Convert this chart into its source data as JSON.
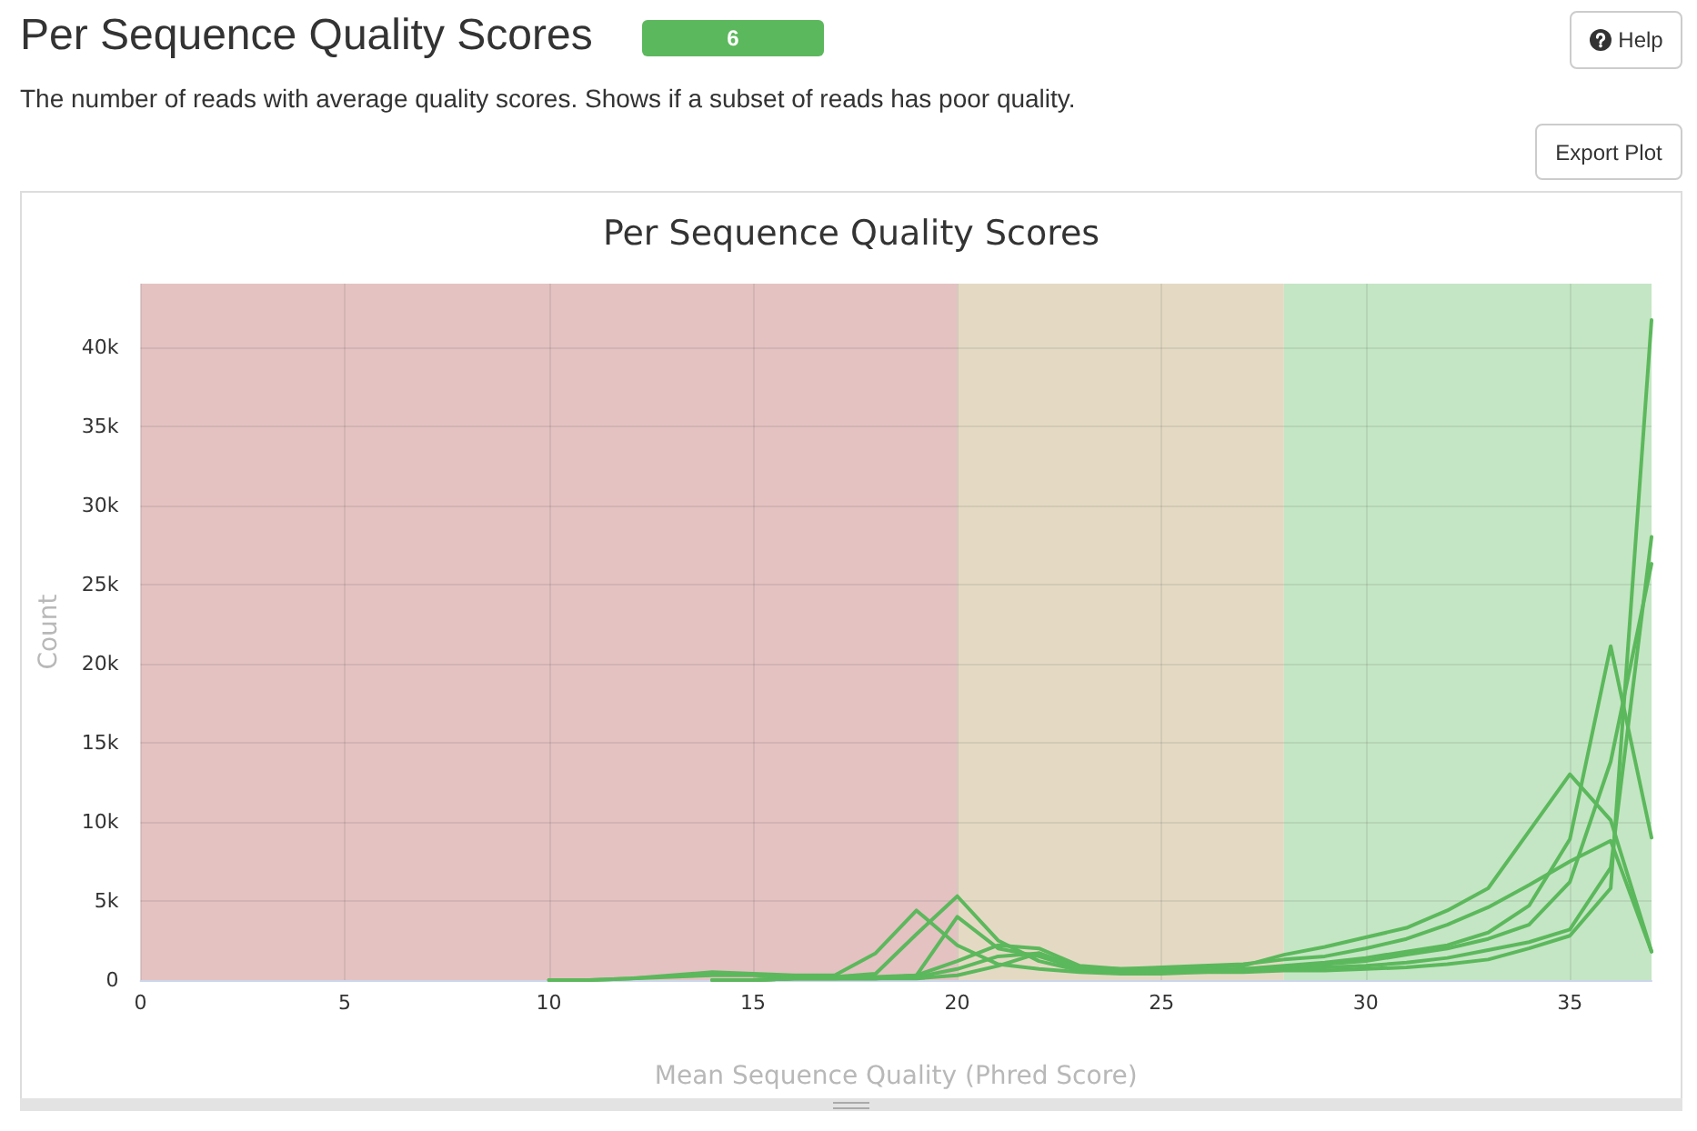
{
  "chart_data": {
    "type": "line",
    "title": "Per Sequence Quality Scores",
    "subtitle": "The number of reads with average quality scores. Shows if a subset of reads has poor quality.",
    "annotations": [
      "Per Sequence Quality Scores",
      "6",
      "Help",
      "Export Plot"
    ],
    "xlabel": "Mean Sequence Quality (Phred Score)",
    "ylabel": "Count",
    "x": [
      10,
      11,
      12,
      13,
      14,
      15,
      16,
      17,
      18,
      19,
      20,
      21,
      22,
      23,
      24,
      25,
      26,
      27,
      28,
      29,
      30,
      31,
      32,
      33,
      34,
      35,
      36,
      37
    ],
    "series": [
      {
        "color": "#5cb85c",
        "values": [
          0,
          0,
          100,
          300,
          500,
          400,
          300,
          300,
          1700,
          4400,
          2200,
          1000,
          700,
          500,
          400,
          400,
          500,
          500,
          600,
          600,
          700,
          800,
          1000,
          1300,
          2000,
          2800,
          5800,
          41700
        ]
      },
      {
        "color": "#5cb85c",
        "values": [
          0,
          0,
          100,
          200,
          300,
          300,
          200,
          200,
          400,
          2900,
          5300,
          2500,
          1200,
          600,
          500,
          500,
          500,
          600,
          700,
          800,
          900,
          1100,
          1400,
          1900,
          2400,
          3200,
          7100,
          28000
        ]
      },
      {
        "color": "#5cb85c",
        "values": [
          null,
          null,
          null,
          null,
          0,
          0,
          100,
          100,
          200,
          300,
          4000,
          2000,
          1500,
          700,
          600,
          600,
          600,
          700,
          900,
          1100,
          1400,
          1800,
          2200,
          3000,
          4700,
          8900,
          21100,
          9000
        ]
      },
      {
        "color": "#5cb85c",
        "values": [
          null,
          null,
          null,
          null,
          0,
          0,
          100,
          100,
          100,
          300,
          1200,
          2200,
          2000,
          900,
          700,
          700,
          800,
          900,
          1600,
          2100,
          2700,
          3300,
          4400,
          5800,
          9400,
          13000,
          10100,
          1800
        ]
      },
      {
        "color": "#5cb85c",
        "values": [
          null,
          null,
          null,
          null,
          0,
          0,
          100,
          100,
          100,
          200,
          700,
          1500,
          1700,
          800,
          700,
          800,
          900,
          1000,
          1300,
          1500,
          2000,
          2600,
          3500,
          4600,
          6000,
          7500,
          8800,
          1800
        ]
      },
      {
        "color": "#5cb85c",
        "values": [
          null,
          null,
          null,
          null,
          0,
          0,
          100,
          100,
          100,
          100,
          300,
          900,
          1700,
          700,
          600,
          600,
          600,
          600,
          800,
          1000,
          1200,
          1600,
          2000,
          2600,
          3500,
          6200,
          13800,
          26300
        ]
      }
    ],
    "xlim": [
      0,
      37
    ],
    "xticks": [
      0,
      5,
      10,
      15,
      20,
      25,
      30,
      35
    ],
    "ylim": [
      0,
      44000
    ],
    "yticks": [
      0,
      {
        "value": 5000,
        "label": "5k"
      },
      {
        "value": 10000,
        "label": "10k"
      },
      {
        "value": 15000,
        "label": "15k"
      },
      {
        "value": 20000,
        "label": "20k"
      },
      {
        "value": 25000,
        "label": "25k"
      },
      {
        "value": 30000,
        "label": "30k"
      },
      {
        "value": 35000,
        "label": "35k"
      },
      {
        "value": 40000,
        "label": "40k"
      }
    ],
    "bands": [
      {
        "axis": "x",
        "from": 0,
        "to": 20,
        "color": "#e4c2c2"
      },
      {
        "axis": "x",
        "from": 20,
        "to": 28,
        "color": "#e4dac4"
      },
      {
        "axis": "x",
        "from": 28,
        "to": 37,
        "color": "#c4e6c4"
      }
    ],
    "grid": true
  }
}
